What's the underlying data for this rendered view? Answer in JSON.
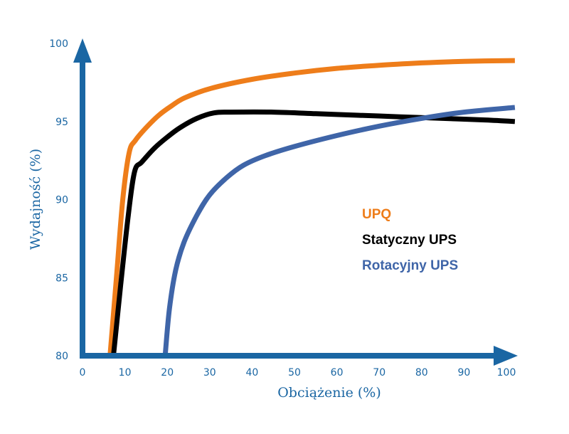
{
  "chart_data": {
    "type": "line",
    "xlabel": "Obciążenie (%)",
    "ylabel": "Wydajność (%)",
    "xlim": [
      0,
      100
    ],
    "ylim": [
      80,
      100
    ],
    "x_ticks": [
      {
        "value": 0,
        "label": "0"
      },
      {
        "value": 10,
        "label": "10"
      },
      {
        "value": 20,
        "label": "20"
      },
      {
        "value": 30,
        "label": "30"
      },
      {
        "value": 40,
        "label": "40"
      },
      {
        "value": 50,
        "label": "50"
      },
      {
        "value": 60,
        "label": "60"
      },
      {
        "value": 70,
        "label": "70"
      },
      {
        "value": 80,
        "label": "80"
      },
      {
        "value": 90,
        "label": "90"
      },
      {
        "value": 100,
        "label": "100"
      }
    ],
    "y_ticks": [
      {
        "value": 80,
        "label": "80"
      },
      {
        "value": 85,
        "label": "85"
      },
      {
        "value": 90,
        "label": "90"
      },
      {
        "value": 95,
        "label": "95"
      },
      {
        "value": 100,
        "label": "100"
      }
    ],
    "grid": false,
    "legend_position": "right-center",
    "series": [
      {
        "name": "UPQ",
        "color": "#ee7d1a",
        "points": [
          [
            6.5,
            80
          ],
          [
            8,
            85
          ],
          [
            9.5,
            90
          ],
          [
            11,
            93
          ],
          [
            12.5,
            93.8
          ],
          [
            15,
            94.6
          ],
          [
            18,
            95.4
          ],
          [
            21,
            96
          ],
          [
            24,
            96.5
          ],
          [
            30,
            97.1
          ],
          [
            40,
            97.7
          ],
          [
            50,
            98.1
          ],
          [
            60,
            98.4
          ],
          [
            70,
            98.6
          ],
          [
            80,
            98.75
          ],
          [
            90,
            98.85
          ],
          [
            102,
            98.9
          ]
        ]
      },
      {
        "name": "Statyczny UPS",
        "color": "#000000",
        "points": [
          [
            7.3,
            80
          ],
          [
            9,
            84.5
          ],
          [
            10.8,
            89
          ],
          [
            12.3,
            91.8
          ],
          [
            14,
            92.4
          ],
          [
            17,
            93.3
          ],
          [
            20,
            94
          ],
          [
            23,
            94.6
          ],
          [
            27,
            95.2
          ],
          [
            31,
            95.55
          ],
          [
            35,
            95.6
          ],
          [
            45,
            95.6
          ],
          [
            55,
            95.5
          ],
          [
            65,
            95.4
          ],
          [
            75,
            95.3
          ],
          [
            85,
            95.2
          ],
          [
            95,
            95.1
          ],
          [
            102,
            95
          ]
        ]
      },
      {
        "name": "Rotacyjny UPS",
        "color": "#3f65a8",
        "points": [
          [
            19.5,
            80
          ],
          [
            20.5,
            83
          ],
          [
            22,
            85.5
          ],
          [
            24,
            87.3
          ],
          [
            27,
            89
          ],
          [
            30,
            90.3
          ],
          [
            34,
            91.4
          ],
          [
            38,
            92.2
          ],
          [
            43,
            92.8
          ],
          [
            50,
            93.4
          ],
          [
            60,
            94.1
          ],
          [
            70,
            94.7
          ],
          [
            80,
            95.2
          ],
          [
            90,
            95.6
          ],
          [
            102,
            95.9
          ]
        ]
      }
    ]
  }
}
